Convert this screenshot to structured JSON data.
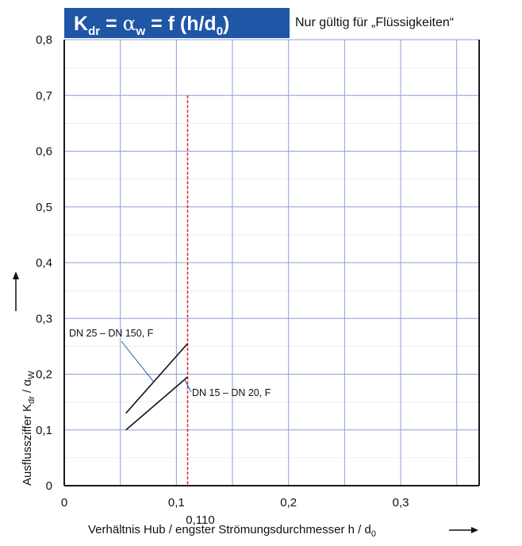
{
  "chart_data": {
    "type": "line",
    "title_box": {
      "k": "K",
      "k_sub": "dr",
      "equals1": " = ",
      "alpha": "α",
      "alpha_sub": "w",
      "equals2": " = f (h/d",
      "d_sub": "0",
      "close": ")"
    },
    "subtitle": "Nur gültig für „Flüssigkeiten“",
    "xlabel": {
      "text": "Verhältnis Hub / engster Strömungsdurchmesser h / d",
      "sub": "0"
    },
    "ylabel": {
      "prefix": "Ausflussziffer K",
      "sub1": "dr",
      "middle": " / α",
      "sub2": "W"
    },
    "xlim": [
      0,
      0.37
    ],
    "ylim": [
      0,
      0.8
    ],
    "x_ticks": [
      {
        "value": 0,
        "label": "0"
      },
      {
        "value": 0.1,
        "label": "0,1"
      },
      {
        "value": 0.2,
        "label": "0,2"
      },
      {
        "value": 0.3,
        "label": "0,3"
      }
    ],
    "y_ticks": [
      {
        "value": 0,
        "label": "0"
      },
      {
        "value": 0.1,
        "label": "0,1"
      },
      {
        "value": 0.2,
        "label": "0,2"
      },
      {
        "value": 0.3,
        "label": "0,3"
      },
      {
        "value": 0.4,
        "label": "0,4"
      },
      {
        "value": 0.5,
        "label": "0,5"
      },
      {
        "value": 0.6,
        "label": "0,6"
      },
      {
        "value": 0.7,
        "label": "0,7"
      },
      {
        "value": 0.8,
        "label": "0,8"
      }
    ],
    "grid_x_step": 0.05,
    "grid_y_step": 0.1,
    "grid": true,
    "series": [
      {
        "name": "DN 25 – DN 150, F",
        "x": [
          0.055,
          0.11
        ],
        "y": [
          0.13,
          0.255
        ]
      },
      {
        "name": "DN 15 – DN 20, F",
        "x": [
          0.055,
          0.11
        ],
        "y": [
          0.1,
          0.195
        ]
      }
    ],
    "reference_line": {
      "x": 0.11,
      "y": [
        0,
        0.7
      ],
      "label": "0,110"
    },
    "colors": {
      "title_bg": "#1f56a6",
      "title_text": "#ffffff",
      "grid": "#8da0d2",
      "axis": "#1a1a1a",
      "series": "#111111",
      "reference": "#e0242a",
      "leader": "#1a5fa8"
    }
  }
}
